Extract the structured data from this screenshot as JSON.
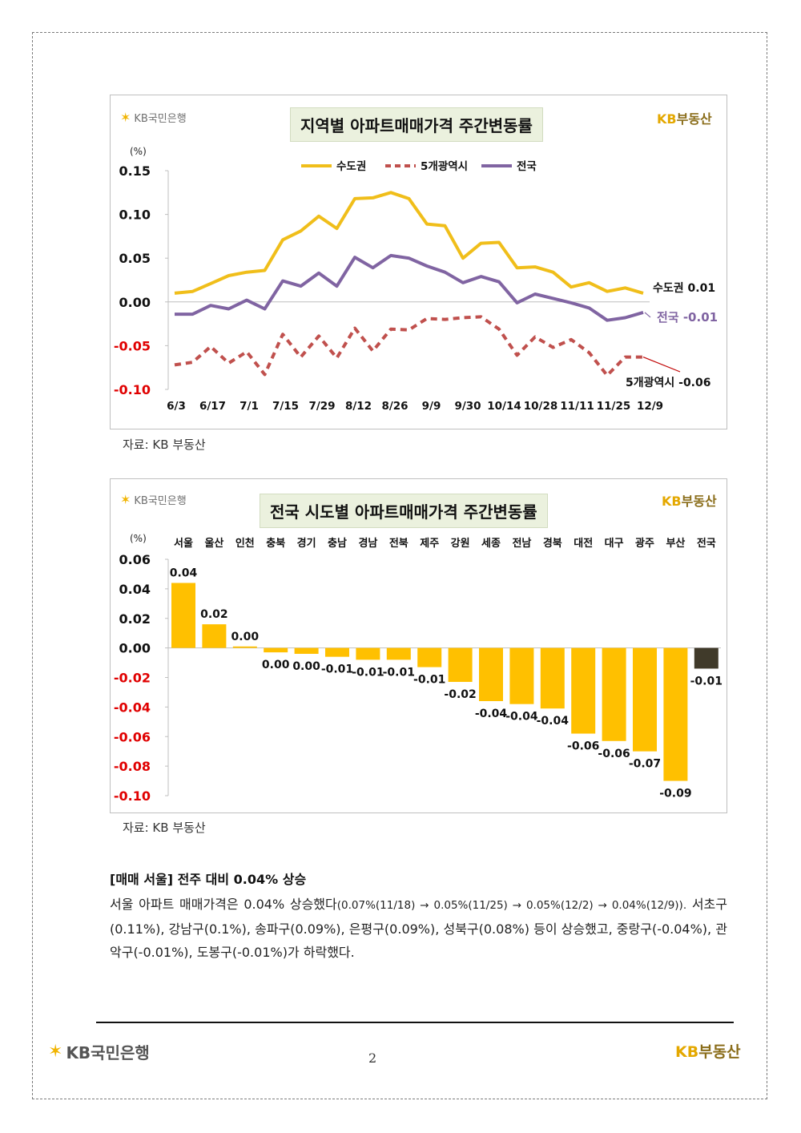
{
  "logos": {
    "kb_bank": "KB국민은행",
    "kb_realestate_prefix": "KB",
    "kb_realestate_suffix": "부동산"
  },
  "colors": {
    "capital": "#f0be1a",
    "metro5": "#c0504d",
    "national": "#8064a2",
    "bar": "#ffc000",
    "bar_national": "#403a2a",
    "negative_label": "#e00000",
    "title_bg": "#ebf1de"
  },
  "chart_data": [
    {
      "type": "line",
      "title": "지역별 아파트매매가격 주간변동률",
      "unit": "(%)",
      "ylim": [
        -0.1,
        0.15
      ],
      "yticks": [
        "0.15",
        "0.10",
        "0.05",
        "0.00",
        "-0.05",
        "-0.10"
      ],
      "x_tick_labels": [
        "6/3",
        "6/17",
        "7/1",
        "7/15",
        "7/29",
        "8/12",
        "8/26",
        "9/9",
        "9/30",
        "10/14",
        "10/28",
        "11/11",
        "11/25",
        "12/9"
      ],
      "legend_position": "top-center",
      "grid": false,
      "series": [
        {
          "name": "수도권",
          "end_label": "수도권 0.01",
          "style": "solid",
          "values": [
            0.01,
            0.012,
            0.021,
            0.03,
            0.034,
            0.036,
            0.071,
            0.081,
            0.098,
            0.084,
            0.118,
            0.119,
            0.125,
            0.118,
            0.089,
            0.087,
            0.05,
            0.067,
            0.068,
            0.039,
            0.04,
            0.034,
            0.017,
            0.022,
            0.012,
            0.016,
            0.01
          ]
        },
        {
          "name": "5개광역시",
          "end_label": "5개광역시 -0.06",
          "style": "dashed",
          "values": [
            -0.072,
            -0.069,
            -0.051,
            -0.07,
            -0.057,
            -0.083,
            -0.037,
            -0.063,
            -0.039,
            -0.064,
            -0.03,
            -0.056,
            -0.031,
            -0.032,
            -0.019,
            -0.02,
            -0.018,
            -0.017,
            -0.031,
            -0.061,
            -0.04,
            -0.052,
            -0.043,
            -0.058,
            -0.084,
            -0.063,
            -0.063
          ]
        },
        {
          "name": "전국",
          "end_label_name": "전국",
          "end_label_value": "-0.01",
          "style": "solid",
          "values": [
            -0.014,
            -0.014,
            -0.004,
            -0.008,
            0.002,
            -0.008,
            0.024,
            0.018,
            0.033,
            0.018,
            0.051,
            0.039,
            0.053,
            0.05,
            0.041,
            0.034,
            0.022,
            0.029,
            0.023,
            -0.001,
            0.009,
            0.004,
            -0.001,
            -0.007,
            -0.021,
            -0.018,
            -0.012
          ]
        }
      ]
    },
    {
      "type": "bar",
      "title": "전국 시도별 아파트매매가격 주간변동률",
      "unit": "(%)",
      "ylim": [
        -0.1,
        0.06
      ],
      "yticks": [
        "0.06",
        "0.04",
        "0.02",
        "0.00",
        "-0.02",
        "-0.04",
        "-0.06",
        "-0.08",
        "-0.10"
      ],
      "categories": [
        "서울",
        "울산",
        "인천",
        "충북",
        "경기",
        "충남",
        "경남",
        "전북",
        "제주",
        "강원",
        "세종",
        "전남",
        "경북",
        "대전",
        "대구",
        "광주",
        "부산",
        "전국"
      ],
      "values": [
        0.044,
        0.016,
        0.001,
        -0.003,
        -0.004,
        -0.006,
        -0.008,
        -0.008,
        -0.013,
        -0.023,
        -0.036,
        -0.038,
        -0.041,
        -0.058,
        -0.063,
        -0.07,
        -0.09,
        -0.014
      ],
      "value_labels": [
        "0.04",
        "0.02",
        "0.00",
        "0.00",
        "0.00",
        "-0.01",
        "-0.01",
        "-0.01",
        "-0.01",
        "-0.02",
        "-0.04",
        "-0.04",
        "-0.04",
        "-0.06",
        "-0.06",
        "-0.07",
        "-0.09",
        "-0.01"
      ],
      "highlight_category": "전국"
    }
  ],
  "source_text": "자료: KB 부동산",
  "section": {
    "heading": "[매매 서울] 전주 대비 0.04% 상승",
    "p_a": "서울 아파트 매매가격은 0.04% 상승했다",
    "p_b": "(0.07%(11/18) → 0.05%(11/25) → 0.05%(12/2) → 0.04%(12/9)).",
    "p_c": " 서초구(0.11%), 강남구(0.1%), 송파구(0.09%), 은평구(0.09%), 성북구(0.08%) 등이 상승했고, 중랑구(-0.04%), 관악구(-0.01%), 도봉구(-0.01%)가 하락했다."
  },
  "footer": {
    "page_number": "2"
  }
}
